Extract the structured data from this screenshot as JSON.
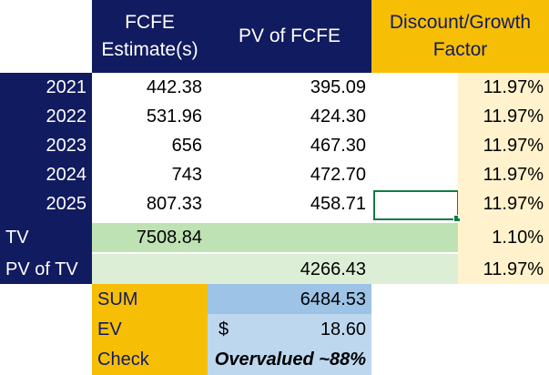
{
  "headers": {
    "fcfe_line1": "FCFE",
    "fcfe_line2": "Estimate(s)",
    "pv": "PV of FCFE",
    "factor_line1": "Discount/Growth",
    "factor_line2": "Factor"
  },
  "rows": [
    {
      "label": "2021",
      "fcfe": "442.38",
      "pv": "395.09",
      "factor": "11.97%"
    },
    {
      "label": "2022",
      "fcfe": "531.96",
      "pv": "424.30",
      "factor": "11.97%"
    },
    {
      "label": "2023",
      "fcfe": "656",
      "pv": "467.30",
      "factor": "11.97%"
    },
    {
      "label": "2024",
      "fcfe": "743",
      "pv": "472.70",
      "factor": "11.97%"
    },
    {
      "label": "2025",
      "fcfe": "807.33",
      "pv": "458.71",
      "factor": "11.97%"
    }
  ],
  "tv": {
    "label": "TV",
    "fcfe": "7508.84",
    "factor": "1.10%"
  },
  "pv_tv": {
    "label": "PV of TV",
    "pv": "4266.43",
    "factor": "11.97%"
  },
  "summary": {
    "sum_label": "SUM",
    "sum_value": "6484.53",
    "ev_label": "EV",
    "ev_currency": "$",
    "ev_value": "18.60",
    "check_label": "Check",
    "check_value": "Overvalued ~88%"
  },
  "colors": {
    "navy": "#111b5f",
    "gold": "#f7be06",
    "cream": "#fff2cc",
    "light_green": "#bfe2b4",
    "pale_green": "#dcefd6",
    "blue": "#9dc3e6",
    "light_blue": "#bdd7ee",
    "selection": "#107c41"
  }
}
